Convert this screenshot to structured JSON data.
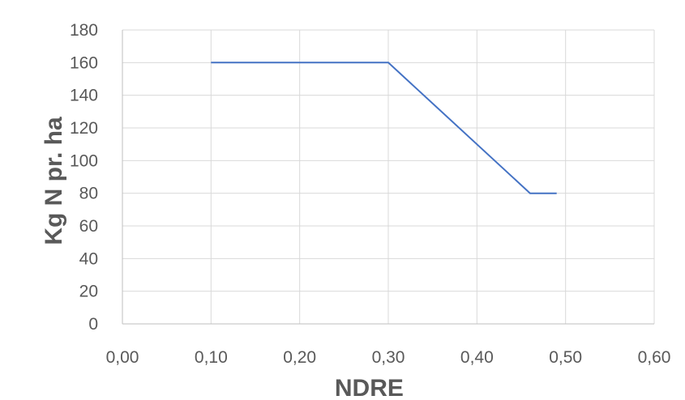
{
  "chart_data": {
    "type": "line",
    "title": "",
    "xlabel": "NDRE",
    "ylabel": "Kg N pr. ha",
    "xlim": [
      0,
      0.6
    ],
    "ylim": [
      0,
      180
    ],
    "x_ticks": [
      "0,00",
      "0,10",
      "0,20",
      "0,30",
      "0,40",
      "0,50",
      "0,60"
    ],
    "y_ticks": [
      "0",
      "20",
      "40",
      "60",
      "80",
      "100",
      "120",
      "140",
      "160",
      "180"
    ],
    "grid": true,
    "legend": "none",
    "series": [
      {
        "color": "#4472C4",
        "x": [
          0.1,
          0.3,
          0.46,
          0.49
        ],
        "y": [
          160,
          160,
          80,
          80
        ]
      }
    ]
  },
  "colors": {
    "grid": "#D9D9D9",
    "axis": "#BFBFBF",
    "text": "#595959"
  }
}
